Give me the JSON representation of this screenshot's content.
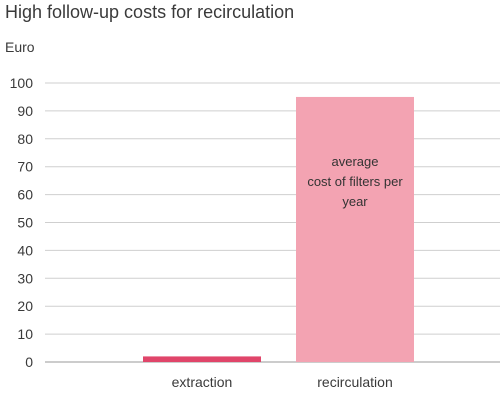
{
  "chart_data": {
    "type": "bar",
    "title": "High follow-up costs for recirculation",
    "ylabel": "Euro",
    "xlabel": "",
    "categories": [
      "extraction",
      "recirculation"
    ],
    "values": [
      2,
      95
    ],
    "ylim": [
      0,
      100
    ],
    "yticks": [
      "0",
      "10",
      "20",
      "30",
      "40",
      "50",
      "60",
      "70",
      "80",
      "90",
      "100"
    ],
    "bar_colors": [
      "#e0456a",
      "#f3a3b2"
    ],
    "grid": true,
    "annotation": {
      "target_category": "recirculation",
      "lines": [
        "average",
        "cost of filters per",
        "year"
      ]
    }
  }
}
